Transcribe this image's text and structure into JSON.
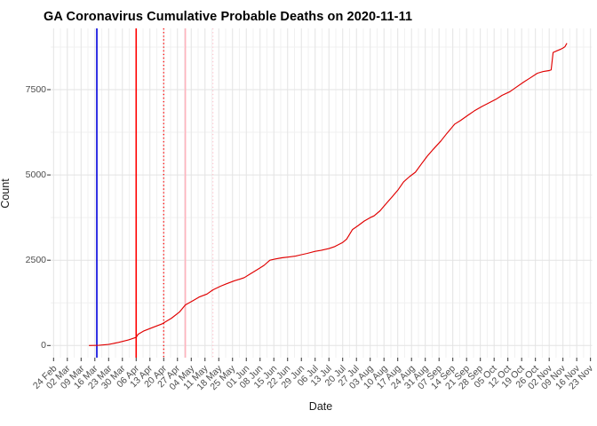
{
  "title": "GA Coronavirus Cumulative Probable Deaths on 2020-11-11",
  "colors": {
    "series_line": "#e00000",
    "vline_blue": "#0000dd",
    "vline_red": "#ff0000",
    "vline_pink": "#ffb3bd",
    "vline_pink_dotted": "#ffc9d2",
    "grid_major": "#e3e3e3",
    "grid_minor": "#f1f1f1",
    "tick_mark": "#333333",
    "tick_text": "#4d4d4d"
  },
  "chart_data": {
    "type": "line",
    "title": "GA Coronavirus Cumulative Probable Deaths on 2020-11-11",
    "xlabel": "Date",
    "ylabel": "Count",
    "legend": "none",
    "grid": "on",
    "axis_range_x": [
      "2020-02-24",
      "2020-11-23"
    ],
    "ylim": [
      0,
      9300
    ],
    "y_ticks": [
      0,
      2500,
      5000,
      7500
    ],
    "y_minor_ticks": [
      1250,
      3750,
      6250,
      8750
    ],
    "x_tick_dates": [
      "2020-02-24",
      "2020-03-02",
      "2020-03-09",
      "2020-03-16",
      "2020-03-23",
      "2020-03-30",
      "2020-04-06",
      "2020-04-13",
      "2020-04-20",
      "2020-04-27",
      "2020-05-04",
      "2020-05-11",
      "2020-05-18",
      "2020-05-25",
      "2020-06-01",
      "2020-06-08",
      "2020-06-15",
      "2020-06-22",
      "2020-06-29",
      "2020-07-06",
      "2020-07-13",
      "2020-07-20",
      "2020-07-27",
      "2020-08-03",
      "2020-08-10",
      "2020-08-17",
      "2020-08-24",
      "2020-08-31",
      "2020-09-07",
      "2020-09-14",
      "2020-09-21",
      "2020-09-28",
      "2020-10-05",
      "2020-10-12",
      "2020-10-19",
      "2020-10-26",
      "2020-11-02",
      "2020-11-09",
      "2020-11-16",
      "2020-11-23"
    ],
    "x_tick_labels": [
      "24 Feb",
      "02 Mar",
      "09 Mar",
      "16 Mar",
      "23 Mar",
      "30 Mar",
      "06 Apr",
      "13 Apr",
      "20 Apr",
      "27 Apr",
      "04 May",
      "11 May",
      "18 May",
      "25 May",
      "01 Jun",
      "08 Jun",
      "15 Jun",
      "22 Jun",
      "29 Jun",
      "06 Jul",
      "13 Jul",
      "20 Jul",
      "27 Jul",
      "03 Aug",
      "10 Aug",
      "17 Aug",
      "24 Aug",
      "31 Aug",
      "07 Sep",
      "14 Sep",
      "21 Sep",
      "28 Sep",
      "05 Oct",
      "12 Oct",
      "19 Oct",
      "26 Oct",
      "02 Nov",
      "09 Nov",
      "16 Nov",
      "23 Nov"
    ],
    "vlines": [
      {
        "name": "event-line-blue-solid",
        "date": "2020-03-17",
        "style": "solid",
        "color": "#0000dd",
        "width": 1.6
      },
      {
        "name": "event-line-red-solid",
        "date": "2020-04-06",
        "style": "solid",
        "color": "#ff0000",
        "width": 1.6
      },
      {
        "name": "event-line-red-dotted",
        "date": "2020-04-20",
        "style": "dotted",
        "color": "#ff0000",
        "width": 1.3
      },
      {
        "name": "event-line-pink-solid",
        "date": "2020-05-01",
        "style": "solid",
        "color": "#ffb3bd",
        "width": 1.6
      },
      {
        "name": "event-line-pink-dotted",
        "date": "2020-05-15",
        "style": "dotted",
        "color": "#ffc9d2",
        "width": 1.3
      }
    ],
    "series": [
      {
        "name": "cumulative-probable-deaths",
        "color": "#e00000",
        "points": [
          [
            "2020-03-13",
            0
          ],
          [
            "2020-03-18",
            5
          ],
          [
            "2020-03-23",
            30
          ],
          [
            "2020-03-28",
            90
          ],
          [
            "2020-04-02",
            160
          ],
          [
            "2020-04-06",
            240
          ],
          [
            "2020-04-07",
            330
          ],
          [
            "2020-04-10",
            430
          ],
          [
            "2020-04-14",
            520
          ],
          [
            "2020-04-19",
            630
          ],
          [
            "2020-04-24",
            800
          ],
          [
            "2020-04-28",
            980
          ],
          [
            "2020-05-01",
            1190
          ],
          [
            "2020-05-05",
            1320
          ],
          [
            "2020-05-08",
            1420
          ],
          [
            "2020-05-12",
            1510
          ],
          [
            "2020-05-15",
            1630
          ],
          [
            "2020-05-19",
            1740
          ],
          [
            "2020-05-22",
            1810
          ],
          [
            "2020-05-26",
            1900
          ],
          [
            "2020-05-29",
            1950
          ],
          [
            "2020-05-31",
            1990
          ],
          [
            "2020-06-03",
            2100
          ],
          [
            "2020-06-07",
            2240
          ],
          [
            "2020-06-10",
            2350
          ],
          [
            "2020-06-13",
            2500
          ],
          [
            "2020-06-16",
            2540
          ],
          [
            "2020-06-19",
            2570
          ],
          [
            "2020-06-23",
            2600
          ],
          [
            "2020-06-26",
            2620
          ],
          [
            "2020-06-29",
            2660
          ],
          [
            "2020-07-02",
            2700
          ],
          [
            "2020-07-06",
            2760
          ],
          [
            "2020-07-09",
            2790
          ],
          [
            "2020-07-13",
            2840
          ],
          [
            "2020-07-16",
            2900
          ],
          [
            "2020-07-20",
            3020
          ],
          [
            "2020-07-22",
            3120
          ],
          [
            "2020-07-25",
            3400
          ],
          [
            "2020-07-28",
            3520
          ],
          [
            "2020-07-31",
            3650
          ],
          [
            "2020-08-03",
            3750
          ],
          [
            "2020-08-05",
            3800
          ],
          [
            "2020-08-08",
            3950
          ],
          [
            "2020-08-11",
            4150
          ],
          [
            "2020-08-14",
            4350
          ],
          [
            "2020-08-17",
            4550
          ],
          [
            "2020-08-20",
            4800
          ],
          [
            "2020-08-23",
            4950
          ],
          [
            "2020-08-26",
            5080
          ],
          [
            "2020-08-29",
            5320
          ],
          [
            "2020-09-01",
            5550
          ],
          [
            "2020-09-04",
            5750
          ],
          [
            "2020-09-08",
            6000
          ],
          [
            "2020-09-11",
            6220
          ],
          [
            "2020-09-15",
            6490
          ],
          [
            "2020-09-18",
            6600
          ],
          [
            "2020-09-22",
            6760
          ],
          [
            "2020-09-25",
            6880
          ],
          [
            "2020-09-29",
            7010
          ],
          [
            "2020-10-02",
            7100
          ],
          [
            "2020-10-06",
            7220
          ],
          [
            "2020-10-09",
            7330
          ],
          [
            "2020-10-13",
            7440
          ],
          [
            "2020-10-16",
            7560
          ],
          [
            "2020-10-20",
            7720
          ],
          [
            "2020-10-23",
            7830
          ],
          [
            "2020-10-27",
            7980
          ],
          [
            "2020-10-30",
            8030
          ],
          [
            "2020-11-02",
            8060
          ],
          [
            "2020-11-03",
            8080
          ],
          [
            "2020-11-04",
            8590
          ],
          [
            "2020-11-06",
            8640
          ],
          [
            "2020-11-08",
            8690
          ],
          [
            "2020-11-09",
            8720
          ],
          [
            "2020-11-10",
            8760
          ],
          [
            "2020-11-11",
            8860
          ]
        ]
      }
    ]
  }
}
